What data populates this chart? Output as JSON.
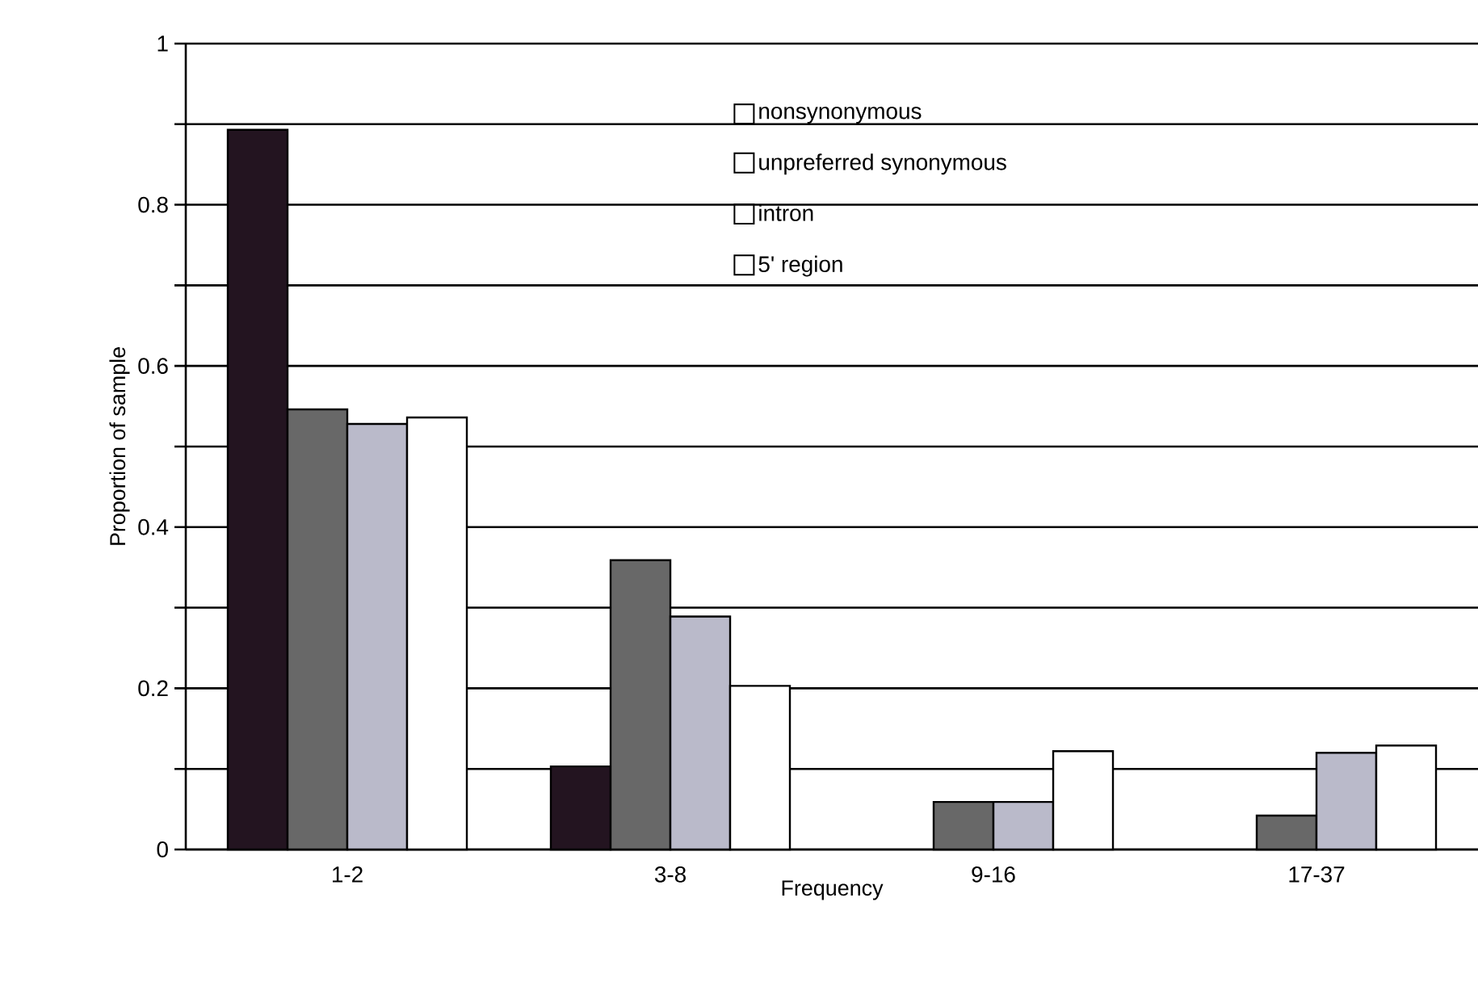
{
  "chart_data": {
    "type": "bar",
    "xlabel": "Frequency",
    "ylabel": "Proportion of sample",
    "categories": [
      "1-2",
      "3-8",
      "9-16",
      "17-37"
    ],
    "series": [
      {
        "name": "nonsynonymous",
        "color": "#231420",
        "values": [
          0.893,
          0.103,
          null,
          null
        ]
      },
      {
        "name": "unpreferred synonymous",
        "color": "#686868",
        "values": [
          0.546,
          0.359,
          0.059,
          0.042
        ]
      },
      {
        "name": "intron",
        "color": "#babaca",
        "values": [
          0.528,
          0.289,
          0.059,
          0.12
        ]
      },
      {
        "name": "5' region",
        "color": "#ffffff",
        "values": [
          0.536,
          0.203,
          0.122,
          0.129
        ]
      }
    ],
    "ylim": [
      0,
      1
    ],
    "yticks": [
      0,
      {
        "value": 0.1,
        "label": null
      },
      0.2,
      {
        "value": 0.3,
        "label": null
      },
      0.4,
      {
        "value": 0.5,
        "label": null
      },
      0.6,
      {
        "value": 0.7,
        "label": null
      },
      0.8,
      {
        "value": 0.9,
        "label": null
      },
      1
    ],
    "grid": "y",
    "legend": "top right"
  }
}
